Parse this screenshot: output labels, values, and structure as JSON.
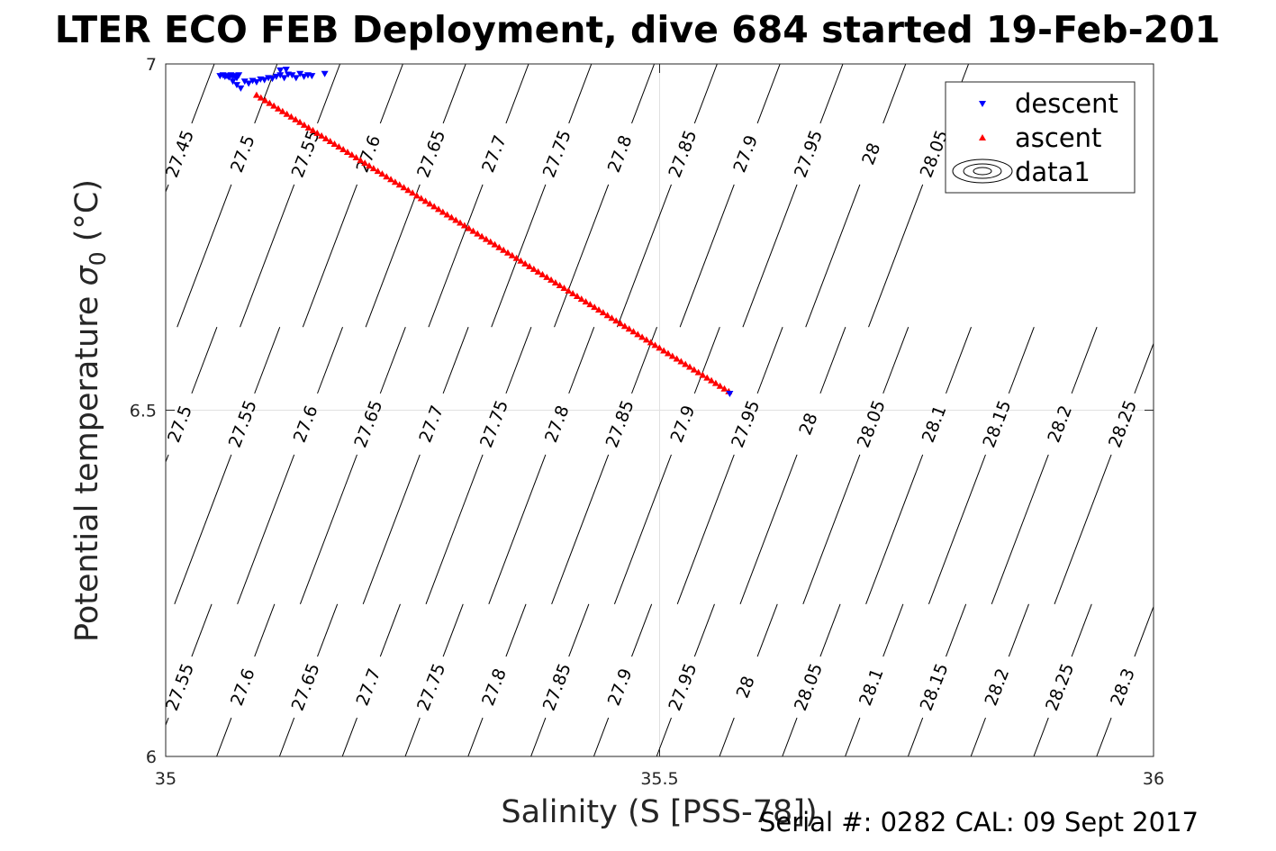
{
  "footer_text": "Serial #: 0282  CAL: 09 Sept 2017",
  "chart_data": {
    "type": "scatter",
    "title": "LTER ECO FEB Deployment, dive 684 started 19-Feb-201",
    "xlabel": "Salinity (S [PSS-78])",
    "ylabel_main": "Potential temperature ",
    "ylabel_sigma": "σ",
    "ylabel_sub": "0",
    "ylabel_unit": " (°C)",
    "xlim": [
      35,
      36
    ],
    "ylim": [
      6,
      7
    ],
    "xticks": [
      35,
      35.5,
      36
    ],
    "xtick_labels": [
      "35",
      "35.5",
      "36"
    ],
    "yticks": [
      6,
      6.5,
      7
    ],
    "ytick_labels": [
      "6",
      "6.5",
      "7"
    ],
    "grid": true,
    "legend_position": "top-right",
    "colors": {
      "descent": "#0000ff",
      "ascent": "#ff0000",
      "contour": "#000000",
      "grid": "#e0e0e0"
    },
    "series": [
      {
        "name": "descent",
        "marker": "triangle-down",
        "color": "#0000ff",
        "x": [
          35.055,
          35.058,
          35.06,
          35.062,
          35.064,
          35.066,
          35.068,
          35.07,
          35.072,
          35.074,
          35.068,
          35.072,
          35.076,
          35.08,
          35.084,
          35.088,
          35.092,
          35.096,
          35.1,
          35.104,
          35.108,
          35.112,
          35.116,
          35.12,
          35.124,
          35.128,
          35.132,
          35.136,
          35.14,
          35.144,
          35.148,
          35.116,
          35.122,
          35.161,
          35.571
        ],
        "y": [
          6.983,
          6.984,
          6.982,
          6.983,
          6.981,
          6.984,
          6.982,
          6.983,
          6.98,
          6.984,
          6.975,
          6.97,
          6.965,
          6.975,
          6.972,
          6.976,
          6.974,
          6.978,
          6.977,
          6.98,
          6.979,
          6.982,
          6.984,
          6.98,
          6.985,
          6.984,
          6.98,
          6.986,
          6.982,
          6.984,
          6.983,
          6.991,
          6.992,
          6.986,
          6.524
        ]
      },
      {
        "name": "ascent",
        "marker": "triangle-up",
        "color": "#ff0000",
        "x_start": 35.092,
        "y_start": 6.955,
        "x_end": 35.57,
        "y_end": 6.527,
        "count": 110
      },
      {
        "name": "data1",
        "marker": "contour",
        "color": "#000000"
      }
    ],
    "density_contours": {
      "description": "sigma-0 isopycnals (kg/m^3 - 1000)",
      "label_rows": [
        {
          "y": 6.87,
          "labels": [
            "27.45",
            "27.5",
            "27.55",
            "27.6",
            "27.65",
            "27.7",
            "27.75",
            "27.8",
            "27.85",
            "27.9",
            "27.95",
            "28",
            "28.05"
          ]
        },
        {
          "y": 6.48,
          "labels": [
            "27.5",
            "27.55",
            "27.6",
            "27.65",
            "27.7",
            "27.75",
            "27.8",
            "27.85",
            "27.9",
            "27.95",
            "28",
            "28.05",
            "28.1",
            "28.15",
            "28.2",
            "28.25"
          ]
        },
        {
          "y": 6.1,
          "labels": [
            "27.55",
            "27.6",
            "27.65",
            "27.7",
            "27.75",
            "27.8",
            "27.85",
            "27.9",
            "27.95",
            "28",
            "28.05",
            "28.1",
            "28.15",
            "28.2",
            "28.25",
            "28.3"
          ]
        }
      ]
    }
  }
}
